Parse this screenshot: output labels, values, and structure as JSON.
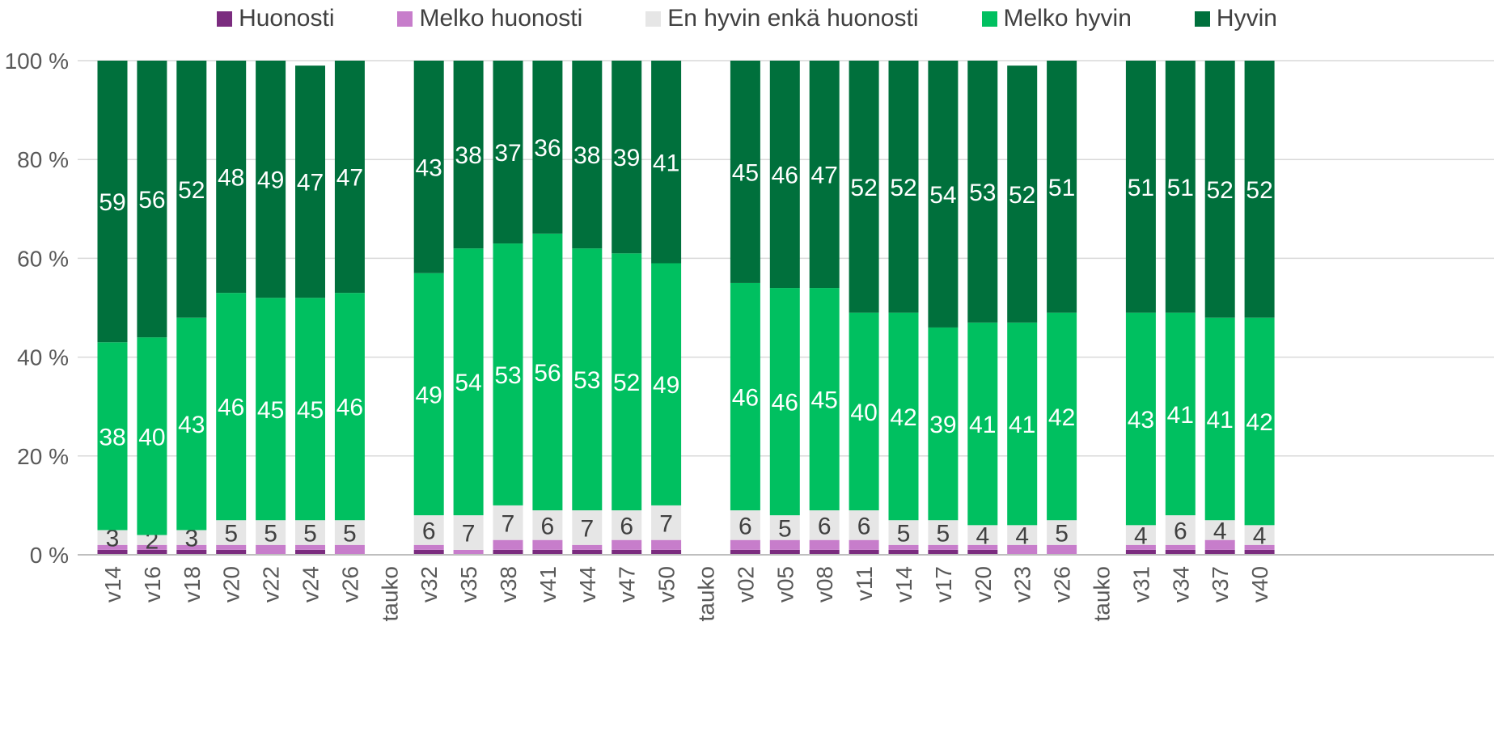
{
  "chart_data": {
    "type": "bar",
    "stacked": true,
    "percent_stacked": true,
    "legend": {
      "position": "top"
    },
    "series": [
      {
        "name": "Huonosti",
        "color": "#7B2C7F",
        "values": [
          1,
          1,
          1,
          1,
          0,
          1,
          0,
          null,
          1,
          0,
          1,
          1,
          1,
          1,
          1,
          null,
          1,
          1,
          1,
          1,
          1,
          1,
          1,
          0,
          0,
          null,
          1,
          1,
          1,
          1
        ]
      },
      {
        "name": "Melko huonosti",
        "color": "#C77DCB",
        "values": [
          1,
          1,
          1,
          1,
          2,
          1,
          2,
          null,
          1,
          1,
          2,
          2,
          1,
          2,
          2,
          null,
          2,
          2,
          2,
          2,
          1,
          1,
          1,
          2,
          2,
          null,
          1,
          1,
          2,
          1
        ]
      },
      {
        "name": "En hyvin enkä huonosti",
        "color": "#E6E6E6",
        "values": [
          3,
          2,
          3,
          5,
          5,
          5,
          5,
          null,
          6,
          7,
          7,
          6,
          7,
          6,
          7,
          null,
          6,
          5,
          6,
          6,
          5,
          5,
          4,
          4,
          5,
          null,
          4,
          6,
          4,
          4
        ]
      },
      {
        "name": "Melko hyvin",
        "color": "#00C060",
        "values": [
          38,
          40,
          43,
          46,
          45,
          45,
          46,
          null,
          49,
          54,
          53,
          56,
          53,
          52,
          49,
          null,
          46,
          46,
          45,
          40,
          42,
          39,
          41,
          41,
          42,
          null,
          43,
          41,
          41,
          42
        ]
      },
      {
        "name": "Hyvin",
        "color": "#00703C",
        "values": [
          59,
          56,
          52,
          48,
          49,
          47,
          47,
          null,
          43,
          38,
          37,
          36,
          38,
          39,
          41,
          null,
          45,
          46,
          47,
          52,
          52,
          54,
          53,
          52,
          51,
          null,
          51,
          51,
          52,
          52
        ]
      }
    ],
    "categories": [
      "v14",
      "v16",
      "v18",
      "v20",
      "v22",
      "v24",
      "v26",
      "tauko",
      "v32",
      "v35",
      "v38",
      "v41",
      "v44",
      "v47",
      "v50",
      "tauko",
      "v02",
      "v05",
      "v08",
      "v11",
      "v14",
      "v17",
      "v20",
      "v23",
      "v26",
      "tauko",
      "v31",
      "v34",
      "v37",
      "v40"
    ],
    "data_labels": {
      "En hyvin enkä huonosti": [
        "3",
        "2",
        "3",
        "5",
        "5",
        "5",
        "5",
        null,
        "6",
        "7",
        "7",
        "6",
        "7",
        "6",
        "7",
        null,
        "6",
        "5",
        "6",
        "6",
        "5",
        "5",
        "4",
        "4",
        "5",
        null,
        "4",
        "6",
        "4",
        "4"
      ],
      "Melko hyvin": [
        "38",
        "40",
        "43",
        "46",
        "45",
        "45",
        "46",
        null,
        "49",
        "54",
        "53",
        "56",
        "53",
        "52",
        "49",
        null,
        "46",
        "46",
        "45",
        "40",
        "42",
        "39",
        "41",
        "41",
        "42",
        null,
        "43",
        "41",
        "41",
        "42"
      ],
      "Hyvin": [
        "59",
        "56",
        "52",
        "48",
        "49",
        "47",
        "47",
        null,
        "43",
        "38",
        "37",
        "36",
        "38",
        "39",
        "41",
        null,
        "45",
        "46",
        "47",
        "52",
        "52",
        "54",
        "53",
        "52",
        "51",
        null,
        "51",
        "51",
        "52",
        "52"
      ]
    },
    "y_ticks": [
      "0 %",
      "20 %",
      "40 %",
      "60 %",
      "80 %",
      "100 %"
    ],
    "ylim": [
      0,
      100
    ],
    "grid": true
  }
}
